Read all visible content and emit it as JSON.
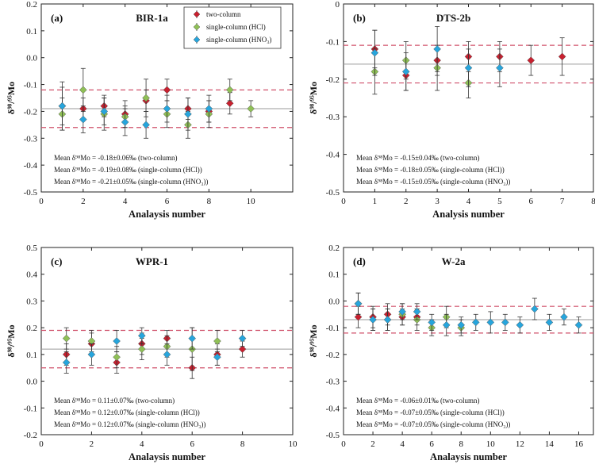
{
  "series_legend": [
    {
      "name": "two-column",
      "color": "#c8202f"
    },
    {
      "name": "single-column (HCl)",
      "color": "#8fc056"
    },
    {
      "name": "single-column (HNO₃)",
      "color": "#27a5dc"
    }
  ],
  "chart_data": [
    {
      "type": "scatter",
      "panel_label": "(a)",
      "title": "BIR-1a",
      "xlabel": "Analaysis number",
      "ylabel": "δ⁹⁸/⁹⁵Mo",
      "xlim": [
        0,
        12
      ],
      "xticks": [
        0,
        2,
        4,
        6,
        8,
        10
      ],
      "ylim": [
        -0.5,
        0.2
      ],
      "yticks": [
        0.2,
        0.1,
        0.0,
        -0.1,
        -0.2,
        -0.3,
        -0.4,
        -0.5
      ],
      "ytick_labels": [
        "0.2",
        "0.1",
        "0.0",
        "-0.1",
        "-0.2",
        "-0.3",
        "-0.4",
        "-0.5"
      ],
      "legend": true,
      "mean_line": -0.19,
      "band": [
        -0.26,
        -0.12
      ],
      "means": [
        "Mean δ⁹⁸Mo = -0.18±0.06‰ (two-column)",
        "Mean δ⁹⁸Mo = -0.19±0.08‰ (single-column (HCl))",
        "Mean δ⁹⁸Mo = -0.21±0.05‰ (single-column (HNO₃))"
      ],
      "series": [
        {
          "name": "two-column",
          "points": [
            [
              1,
              -0.18,
              0.09
            ],
            [
              2,
              -0.19,
              0.04
            ],
            [
              3,
              -0.18,
              0.04
            ],
            [
              4,
              -0.21,
              0.05
            ],
            [
              5,
              -0.16,
              0.04
            ],
            [
              6,
              -0.12,
              0.04
            ],
            [
              7,
              -0.19,
              0.04
            ],
            [
              8,
              -0.2,
              0.04
            ],
            [
              9,
              -0.17,
              0.04
            ]
          ]
        },
        {
          "name": "single-column (HCl)",
          "points": [
            [
              1,
              -0.21,
              0.06
            ],
            [
              2,
              -0.12,
              0.08
            ],
            [
              3,
              -0.21,
              0.06
            ],
            [
              4,
              -0.22,
              0.04
            ],
            [
              5,
              -0.15,
              0.07
            ],
            [
              6,
              -0.21,
              0.05
            ],
            [
              7,
              -0.25,
              0.05
            ],
            [
              8,
              -0.21,
              0.05
            ],
            [
              9,
              -0.12,
              0.04
            ],
            [
              10,
              -0.19,
              0.03
            ]
          ]
        },
        {
          "name": "single-column (HNO₃)",
          "points": [
            [
              1,
              -0.18,
              0.07
            ],
            [
              2,
              -0.23,
              0.05
            ],
            [
              3,
              -0.2,
              0.05
            ],
            [
              4,
              -0.24,
              0.05
            ],
            [
              5,
              -0.25,
              0.05
            ],
            [
              6,
              -0.19,
              0.05
            ],
            [
              7,
              -0.21,
              0.06
            ],
            [
              8,
              -0.19,
              0.05
            ]
          ]
        }
      ]
    },
    {
      "type": "scatter",
      "panel_label": "(b)",
      "title": "DTS-2b",
      "xlabel": "Analysis number",
      "ylabel": "δ⁹⁸/⁹⁵Mo",
      "xlim": [
        0,
        8
      ],
      "xticks": [
        0,
        1,
        2,
        3,
        4,
        5,
        6,
        7,
        8
      ],
      "ylim": [
        -0.5,
        0.0
      ],
      "yticks": [
        0.0,
        -0.1,
        -0.2,
        -0.3,
        -0.4,
        -0.5
      ],
      "ytick_labels": [
        "0",
        "-0.1",
        "-0.2",
        "-0.3",
        "-0.4",
        "-0.5"
      ],
      "legend": false,
      "mean_line": -0.16,
      "band": [
        -0.21,
        -0.11
      ],
      "means": [
        "Mean δ⁹⁸Mo = -0.15±0.04‰ (two-column)",
        "Mean δ⁹⁸Mo = -0.18±0.05‰ (single-column (HCl))",
        "Mean δ⁹⁸Mo = -0.15±0.05‰ (single-column (HNO₃))"
      ],
      "series": [
        {
          "name": "two-column",
          "points": [
            [
              1,
              -0.12,
              0.05
            ],
            [
              2,
              -0.19,
              0.04
            ],
            [
              3,
              -0.15,
              0.04
            ],
            [
              4,
              -0.14,
              0.04
            ],
            [
              5,
              -0.14,
              0.04
            ],
            [
              6,
              -0.15,
              0.04
            ],
            [
              7,
              -0.14,
              0.05
            ]
          ]
        },
        {
          "name": "single-column (HCl)",
          "points": [
            [
              1,
              -0.18,
              0.06
            ],
            [
              2,
              -0.15,
              0.05
            ],
            [
              3,
              -0.17,
              0.06
            ],
            [
              4,
              -0.21,
              0.04
            ]
          ]
        },
        {
          "name": "single-column (HNO₃)",
          "points": [
            [
              1,
              -0.13,
              0.06
            ],
            [
              2,
              -0.18,
              0.05
            ],
            [
              3,
              -0.12,
              0.06
            ],
            [
              4,
              -0.17,
              0.05
            ],
            [
              5,
              -0.17,
              0.05
            ]
          ]
        }
      ]
    },
    {
      "type": "scatter",
      "panel_label": "(c)",
      "title": "WPR-1",
      "xlabel": "Analaysis number",
      "ylabel": "δ⁹⁸/⁹⁵Mo",
      "xlim": [
        0,
        10
      ],
      "xticks": [
        0,
        2,
        4,
        6,
        8,
        10
      ],
      "ylim": [
        -0.2,
        0.5
      ],
      "yticks": [
        0.5,
        0.4,
        0.3,
        0.2,
        0.1,
        0.0,
        -0.1,
        -0.2
      ],
      "ytick_labels": [
        "0.5",
        "0.4",
        "0.3",
        "0.2",
        "0.1",
        "0.0",
        "-0.1",
        "-0.2"
      ],
      "legend": false,
      "mean_line": 0.12,
      "band": [
        0.05,
        0.19
      ],
      "means": [
        "Mean δ⁹⁸Mo = 0.11±0.07‰ (two-column)",
        "Mean δ⁹⁸Mo = 0.12±0.07‰ (single-column (HCl))",
        "Mean δ⁹⁸Mo = 0.12±0.07‰ (single-column (HNO₃))"
      ],
      "series": [
        {
          "name": "two-column",
          "points": [
            [
              1,
              0.1,
              0.04
            ],
            [
              2,
              0.14,
              0.04
            ],
            [
              3,
              0.07,
              0.04
            ],
            [
              4,
              0.14,
              0.04
            ],
            [
              5,
              0.16,
              0.03
            ],
            [
              6,
              0.05,
              0.04
            ],
            [
              7,
              0.1,
              0.04
            ],
            [
              8,
              0.12,
              0.03
            ]
          ]
        },
        {
          "name": "single-column (HCl)",
          "points": [
            [
              1,
              0.16,
              0.04
            ],
            [
              2,
              0.15,
              0.04
            ],
            [
              3,
              0.09,
              0.04
            ],
            [
              4,
              0.12,
              0.04
            ],
            [
              5,
              0.13,
              0.04
            ],
            [
              6,
              0.12,
              0.08
            ],
            [
              7,
              0.15,
              0.04
            ]
          ]
        },
        {
          "name": "single-column (HNO₃)",
          "points": [
            [
              1,
              0.07,
              0.04
            ],
            [
              2,
              0.1,
              0.04
            ],
            [
              3,
              0.15,
              0.04
            ],
            [
              4,
              0.17,
              0.03
            ],
            [
              5,
              0.1,
              0.04
            ],
            [
              6,
              0.16,
              0.04
            ],
            [
              7,
              0.09,
              0.03
            ],
            [
              8,
              0.16,
              0.03
            ]
          ]
        }
      ]
    },
    {
      "type": "scatter",
      "panel_label": "(d)",
      "title": "W-2a",
      "xlabel": "Analaysis number",
      "ylabel": "δ⁹⁸/⁹⁵Mo",
      "xlim": [
        0,
        17
      ],
      "xticks": [
        0,
        2,
        4,
        6,
        8,
        10,
        12,
        14,
        16
      ],
      "ylim": [
        -0.5,
        0.2
      ],
      "yticks": [
        0.2,
        0.1,
        0.0,
        -0.1,
        -0.2,
        -0.3,
        -0.4,
        -0.5
      ],
      "ytick_labels": [
        "0.2",
        "0.1",
        "0.0",
        "-0.1",
        "-0.2",
        "-0.3",
        "-0.4",
        "-0.5"
      ],
      "legend": false,
      "mean_line": -0.07,
      "band": [
        -0.12,
        -0.02
      ],
      "means": [
        "Mean δ⁹⁸Mo = -0.06±0.01‰ (two-column)",
        "Mean δ⁹⁸Mo = -0.07±0.05‰ (single-column (HCl))",
        "Mean δ⁹⁸Mo = -0.07±0.05‰ (single-column (HNO₃))"
      ],
      "series": [
        {
          "name": "two-column",
          "points": [
            [
              1,
              -0.06,
              0.04
            ],
            [
              2,
              -0.06,
              0.04
            ],
            [
              3,
              -0.05,
              0.04
            ],
            [
              4,
              -0.06,
              0.03
            ],
            [
              5,
              -0.06,
              0.03
            ]
          ]
        },
        {
          "name": "single-column (HCl)",
          "points": [
            [
              1,
              -0.01,
              0.04
            ],
            [
              2,
              -0.07,
              0.04
            ],
            [
              3,
              -0.07,
              0.04
            ],
            [
              4,
              -0.05,
              0.04
            ],
            [
              5,
              -0.07,
              0.04
            ],
            [
              6,
              -0.1,
              0.03
            ],
            [
              7,
              -0.06,
              0.04
            ],
            [
              8,
              -0.1,
              0.03
            ]
          ]
        },
        {
          "name": "single-column (HNO₃)",
          "points": [
            [
              1,
              -0.01,
              0.04
            ],
            [
              2,
              -0.07,
              0.04
            ],
            [
              3,
              -0.07,
              0.04
            ],
            [
              4,
              -0.04,
              0.03
            ],
            [
              5,
              -0.04,
              0.03
            ],
            [
              6,
              -0.08,
              0.03
            ],
            [
              7,
              -0.09,
              0.04
            ],
            [
              8,
              -0.09,
              0.03
            ],
            [
              9,
              -0.08,
              0.03
            ],
            [
              10,
              -0.08,
              0.04
            ],
            [
              11,
              -0.08,
              0.03
            ],
            [
              12,
              -0.09,
              0.03
            ],
            [
              13,
              -0.03,
              0.04
            ],
            [
              14,
              -0.08,
              0.03
            ],
            [
              15,
              -0.06,
              0.03
            ],
            [
              16,
              -0.09,
              0.03
            ]
          ]
        }
      ]
    }
  ]
}
